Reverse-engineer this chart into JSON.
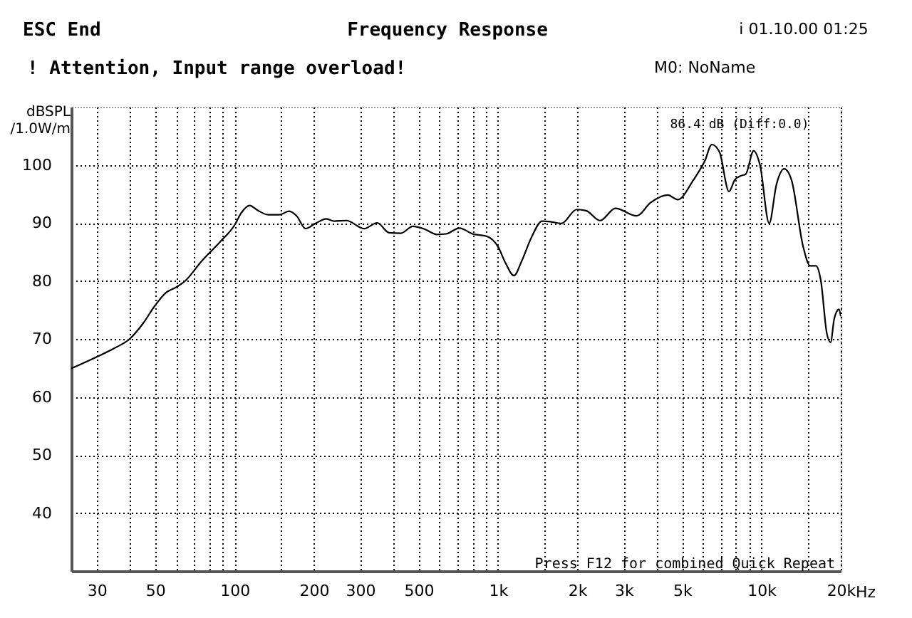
{
  "chart_data": {
    "type": "line",
    "title": "Frequency Response",
    "xlabel": "Hz",
    "ylabel": "dBSPL /1.0W/m",
    "color": "#000000",
    "x": [
      24,
      30,
      35,
      40,
      45,
      50,
      55,
      60,
      65,
      75,
      88,
      100,
      106,
      114,
      123,
      134,
      148,
      161,
      172,
      186,
      203,
      223,
      239,
      266,
      310,
      348,
      386,
      428,
      475,
      528,
      585,
      635,
      714,
      800,
      905,
      1000,
      1070,
      1150,
      1230,
      1340,
      1470,
      1580,
      1740,
      1990,
      2160,
      2440,
      2790,
      3360,
      3800,
      4410,
      4810,
      5520,
      6100,
      6480,
      6930,
      7530,
      7920,
      8350,
      8720,
      9340,
      9880,
      10700,
      11400,
      12200,
      13000,
      14400,
      15300,
      16100,
      16800,
      17700,
      18300,
      18900,
      19700,
      20000
    ],
    "values": [
      64.9,
      66.9,
      68.4,
      70.0,
      72.7,
      75.8,
      78.0,
      78.9,
      80.0,
      83.4,
      86.7,
      89.6,
      91.7,
      93.0,
      92.1,
      91.4,
      91.4,
      92.0,
      91.2,
      89.0,
      89.9,
      90.7,
      90.3,
      90.4,
      89.0,
      90.0,
      88.3,
      88.2,
      89.4,
      88.9,
      88.0,
      88.1,
      89.1,
      88.1,
      87.7,
      85.9,
      83.0,
      80.9,
      83.4,
      87.5,
      90.3,
      90.2,
      89.9,
      92.3,
      92.1,
      90.4,
      92.5,
      91.2,
      93.5,
      94.8,
      94.0,
      97.4,
      100.7,
      103.5,
      102.2,
      95.4,
      97.4,
      98.1,
      98.4,
      102.4,
      99.9,
      89.9,
      96.6,
      99.3,
      97.4,
      85.9,
      82.6,
      82.6,
      80.1,
      71.0,
      69.4,
      73.5,
      75.1,
      73.9
    ],
    "xlim": [
      24,
      20000
    ],
    "log": "x",
    "xticks": [
      30,
      {
        "value": 40,
        "label": null
      },
      50,
      {
        "value": 60,
        "label": null
      },
      {
        "value": 70,
        "label": null
      },
      {
        "value": 80,
        "label": null
      },
      {
        "value": 90,
        "label": null
      },
      100,
      {
        "value": 150,
        "label": null
      },
      200,
      300,
      {
        "value": 400,
        "label": null
      },
      500,
      {
        "value": 600,
        "label": null
      },
      {
        "value": 700,
        "label": null
      },
      {
        "value": 800,
        "label": null
      },
      {
        "value": 900,
        "label": null
      },
      {
        "value": 1000,
        "label": "1k"
      },
      {
        "value": 1500,
        "label": null
      },
      {
        "value": 2000,
        "label": "2k"
      },
      {
        "value": 3000,
        "label": "3k"
      },
      {
        "value": 4000,
        "label": null
      },
      {
        "value": 5000,
        "label": "5k"
      },
      {
        "value": 6000,
        "label": null
      },
      {
        "value": 7000,
        "label": null
      },
      {
        "value": 8000,
        "label": null
      },
      {
        "value": 9000,
        "label": null
      },
      {
        "value": 10000,
        "label": "10k"
      },
      {
        "value": 15000,
        "label": null
      },
      {
        "value": 20000,
        "label": "20k"
      }
    ],
    "ylim": [
      30,
      110
    ],
    "yticks": [
      40,
      50,
      60,
      70,
      80,
      90,
      100
    ],
    "grid": true,
    "annotations": [
      "ESC End",
      "i 01.10.00 01:25",
      "! Attention, Input range overload!",
      "M0: NoName",
      "86.4 dB (Diff:0.0)",
      "Press F12 for combined Quick Repeat"
    ]
  }
}
